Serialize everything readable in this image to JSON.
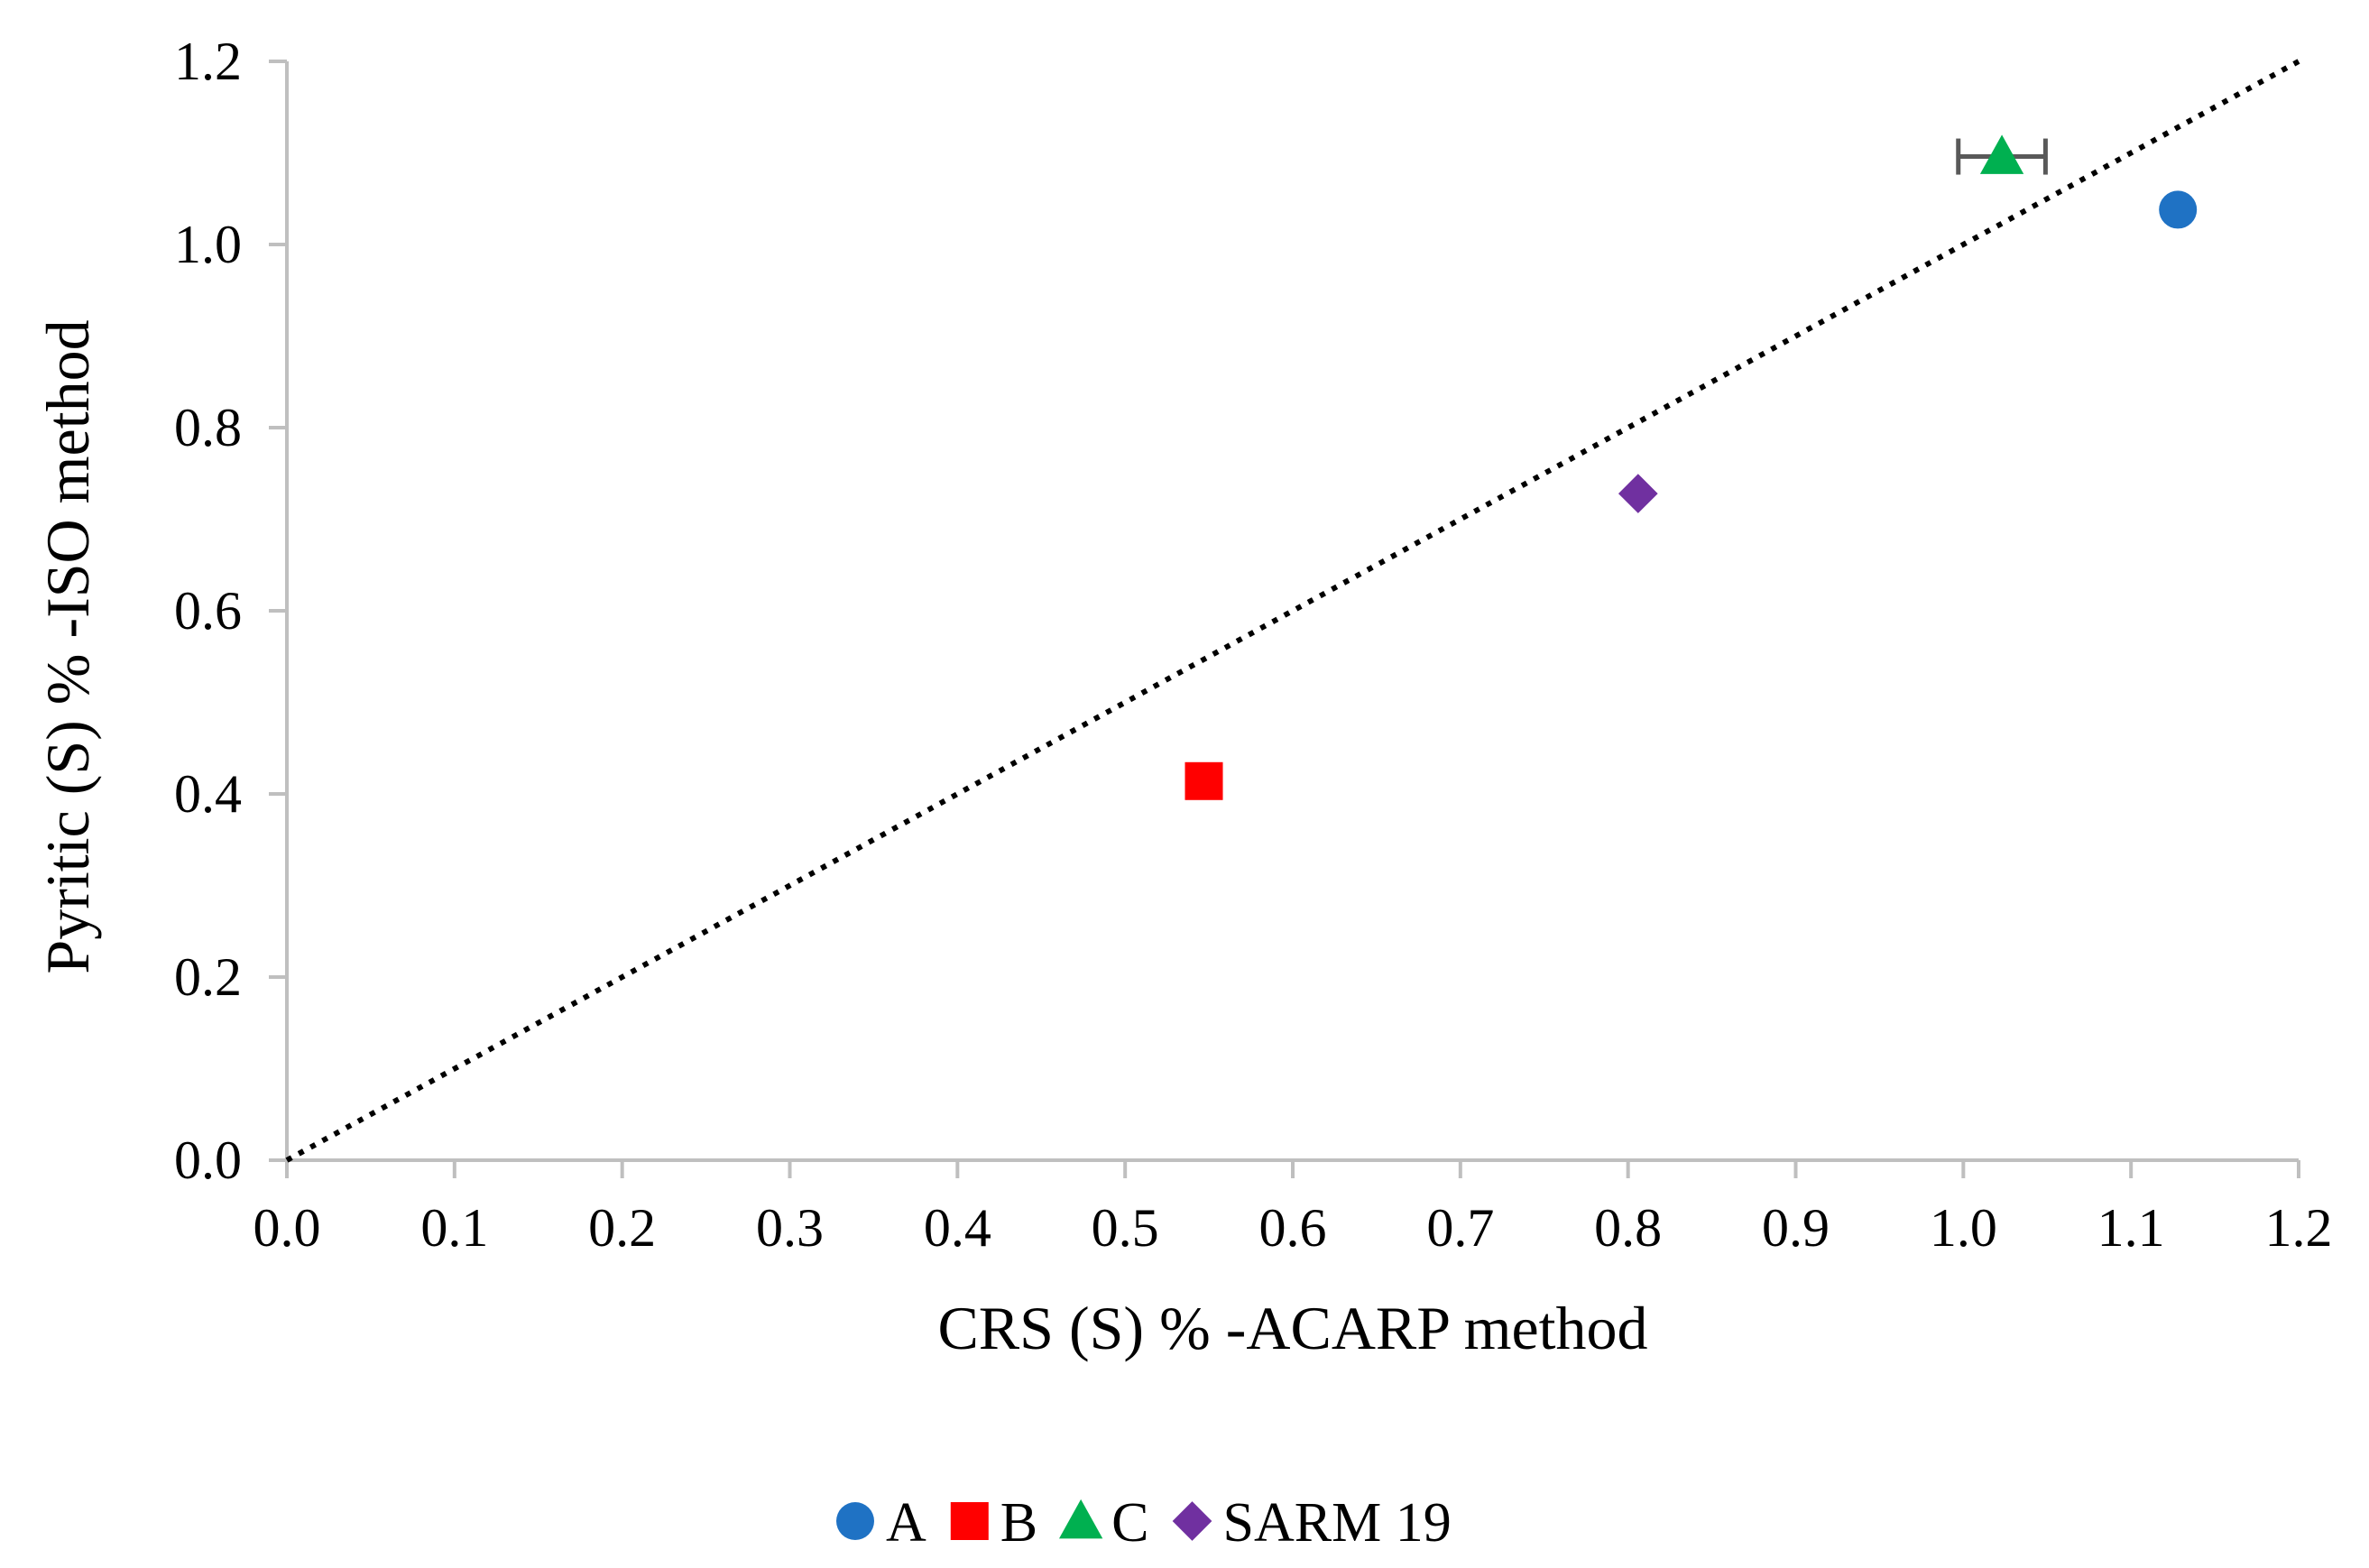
{
  "chart_data": {
    "type": "scatter",
    "title": "",
    "xlabel": "CRS (S) % -ACARP method",
    "ylabel": "Pyritic (S) % -ISO method",
    "xlim": [
      0,
      1.2
    ],
    "ylim": [
      0,
      1.2
    ],
    "x_ticks": [
      "0.0",
      "0.1",
      "0.2",
      "0.3",
      "0.4",
      "0.5",
      "0.6",
      "0.7",
      "0.8",
      "0.9",
      "1.0",
      "1.1",
      "1.2"
    ],
    "y_ticks": [
      "0.0",
      "0.2",
      "0.4",
      "0.6",
      "0.8",
      "1.0",
      "1.2"
    ],
    "grid": false,
    "legend_position": "bottom",
    "series": [
      {
        "name": "A",
        "marker": "circle",
        "color": "#1f72c4",
        "x": 1.128,
        "y": 1.038
      },
      {
        "name": "B",
        "marker": "square",
        "color": "#ff0000",
        "x": 0.547,
        "y": 0.414
      },
      {
        "name": "C",
        "marker": "triangle",
        "color": "#00b050",
        "x": 1.023,
        "y": 1.096,
        "x_error": 0.026
      },
      {
        "name": "SARM 19",
        "marker": "diamond",
        "color": "#7030a0",
        "x": 0.806,
        "y": 0.728
      }
    ],
    "reference_line": {
      "style": "dotted",
      "color": "#000000",
      "from": [
        0,
        0
      ],
      "to": [
        1.2,
        1.2
      ]
    }
  }
}
